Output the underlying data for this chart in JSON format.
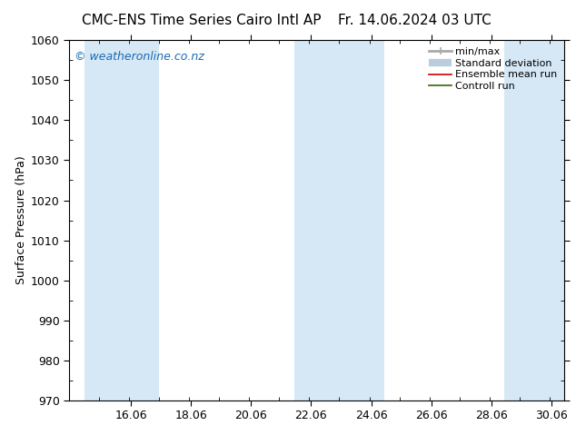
{
  "title_left": "CMC-ENS Time Series Cairo Intl AP",
  "title_right": "Fr. 14.06.2024 03 UTC",
  "ylabel": "Surface Pressure (hPa)",
  "ylim": [
    970,
    1060
  ],
  "yticks": [
    970,
    980,
    990,
    1000,
    1010,
    1020,
    1030,
    1040,
    1050,
    1060
  ],
  "xlim_start": 14.0,
  "xlim_end": 30.5,
  "xticks": [
    16.06,
    18.06,
    20.06,
    22.06,
    24.06,
    26.06,
    28.06,
    30.06
  ],
  "xtick_labels": [
    "16.06",
    "18.06",
    "20.06",
    "22.06",
    "24.06",
    "26.06",
    "28.06",
    "30.06"
  ],
  "shaded_bands": [
    {
      "x_start": 14.5,
      "x_end": 17.0
    },
    {
      "x_start": 21.5,
      "x_end": 24.5
    },
    {
      "x_start": 28.5,
      "x_end": 30.5
    }
  ],
  "shaded_color": "#d6e8f5",
  "bg_color": "#ffffff",
  "watermark_text": "© weatheronline.co.nz",
  "watermark_color": "#1a6ab5",
  "legend_items": [
    {
      "label": "min/max",
      "color": "#aaaaaa",
      "lw": 2.0,
      "style": "line_with_caps"
    },
    {
      "label": "Standard deviation",
      "color": "#bbccdd",
      "lw": 6,
      "style": "thick_line"
    },
    {
      "label": "Ensemble mean run",
      "color": "#cc0000",
      "lw": 1.2,
      "style": "line"
    },
    {
      "label": "Controll run",
      "color": "#336600",
      "lw": 1.2,
      "style": "line"
    }
  ],
  "spine_color": "#000000",
  "title_fontsize": 11,
  "axis_label_fontsize": 9,
  "tick_fontsize": 9,
  "legend_fontsize": 8,
  "watermark_fontsize": 9
}
